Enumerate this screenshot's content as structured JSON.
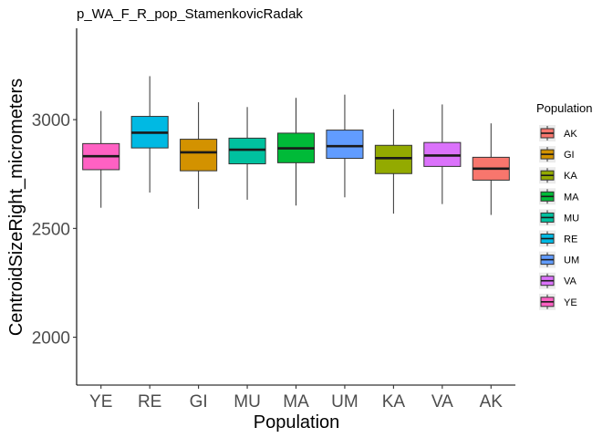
{
  "chart_data": {
    "type": "boxplot",
    "title": "p_WA_F_R_pop_StamenkovicRadak",
    "xlabel": "Population",
    "ylabel": "CentroidSizeRight_micrometers",
    "ylim": [
      1780,
      3420
    ],
    "y_ticks": [
      2000,
      2500,
      3000
    ],
    "grid": false,
    "legend": {
      "title": "Population",
      "position": "right",
      "entries": [
        "AK",
        "GI",
        "KA",
        "MA",
        "MU",
        "RE",
        "UM",
        "VA",
        "YE"
      ]
    },
    "colors": {
      "AK": "#F8766D",
      "GI": "#D39200",
      "KA": "#93AA00",
      "MA": "#00BA38",
      "MU": "#00C19F",
      "RE": "#00B9E3",
      "UM": "#619CFF",
      "VA": "#DB72FB",
      "YE": "#FF61C3"
    },
    "categories": [
      "YE",
      "RE",
      "GI",
      "MU",
      "MA",
      "UM",
      "KA",
      "VA",
      "AK"
    ],
    "boxes": [
      {
        "category": "YE",
        "min": 2595,
        "q1": 2770,
        "median": 2832,
        "q3": 2890,
        "max": 3040
      },
      {
        "category": "RE",
        "min": 2665,
        "q1": 2870,
        "median": 2940,
        "q3": 3015,
        "max": 3200
      },
      {
        "category": "GI",
        "min": 2590,
        "q1": 2765,
        "median": 2850,
        "q3": 2910,
        "max": 3080
      },
      {
        "category": "MU",
        "min": 2632,
        "q1": 2797,
        "median": 2862,
        "q3": 2915,
        "max": 3058
      },
      {
        "category": "MA",
        "min": 2605,
        "q1": 2802,
        "median": 2868,
        "q3": 2938,
        "max": 3100
      },
      {
        "category": "UM",
        "min": 2643,
        "q1": 2822,
        "median": 2878,
        "q3": 2952,
        "max": 3115
      },
      {
        "category": "KA",
        "min": 2568,
        "q1": 2752,
        "median": 2823,
        "q3": 2882,
        "max": 3048
      },
      {
        "category": "VA",
        "min": 2612,
        "q1": 2785,
        "median": 2835,
        "q3": 2895,
        "max": 3070
      },
      {
        "category": "AK",
        "min": 2562,
        "q1": 2722,
        "median": 2775,
        "q3": 2827,
        "max": 2983
      }
    ]
  }
}
